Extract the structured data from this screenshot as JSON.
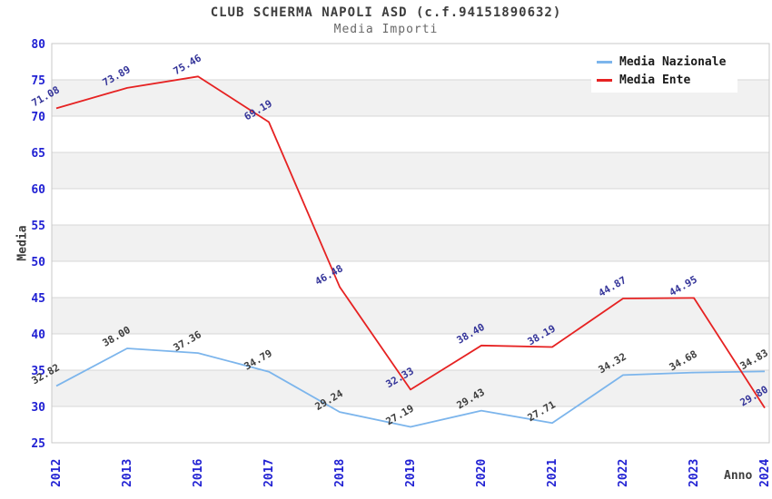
{
  "header": {
    "title": "CLUB SCHERMA NAPOLI ASD (c.f.94151890632)",
    "subtitle": "Media Importi"
  },
  "legend": {
    "items": [
      {
        "label": "Media Nazionale",
        "color": "#7cb5ec"
      },
      {
        "label": "Media Ente",
        "color": "#e62222"
      }
    ]
  },
  "chart_data": {
    "type": "line",
    "title": "CLUB SCHERMA NAPOLI ASD (c.f.94151890632)",
    "subtitle": "Media Importi",
    "xlabel": "Anno",
    "ylabel": "Media",
    "x": [
      "2012",
      "2013",
      "2016",
      "2017",
      "2018",
      "2019",
      "2020",
      "2021",
      "2022",
      "2023",
      "2024"
    ],
    "series": [
      {
        "name": "Media Nazionale",
        "color": "#7cb5ec",
        "label_color": "#3d3d3d",
        "values": [
          32.82,
          38.0,
          37.36,
          34.79,
          29.24,
          27.19,
          29.43,
          27.71,
          34.32,
          34.68,
          34.83
        ]
      },
      {
        "name": "Media Ente",
        "color": "#e62222",
        "label_color": "#343499",
        "values": [
          71.08,
          73.89,
          75.46,
          69.19,
          46.48,
          32.33,
          38.4,
          38.19,
          44.87,
          44.95,
          29.8
        ]
      }
    ],
    "ylim": [
      25,
      80
    ],
    "ytick_step": 5,
    "grid": "horizontal-bands",
    "legend_position": "top-right",
    "colors": {
      "band_fill": "#f1f1f1",
      "gridline": "#d7d7d7",
      "plot_border": "#c9c9c9",
      "tick_label": "#2121d3"
    }
  }
}
